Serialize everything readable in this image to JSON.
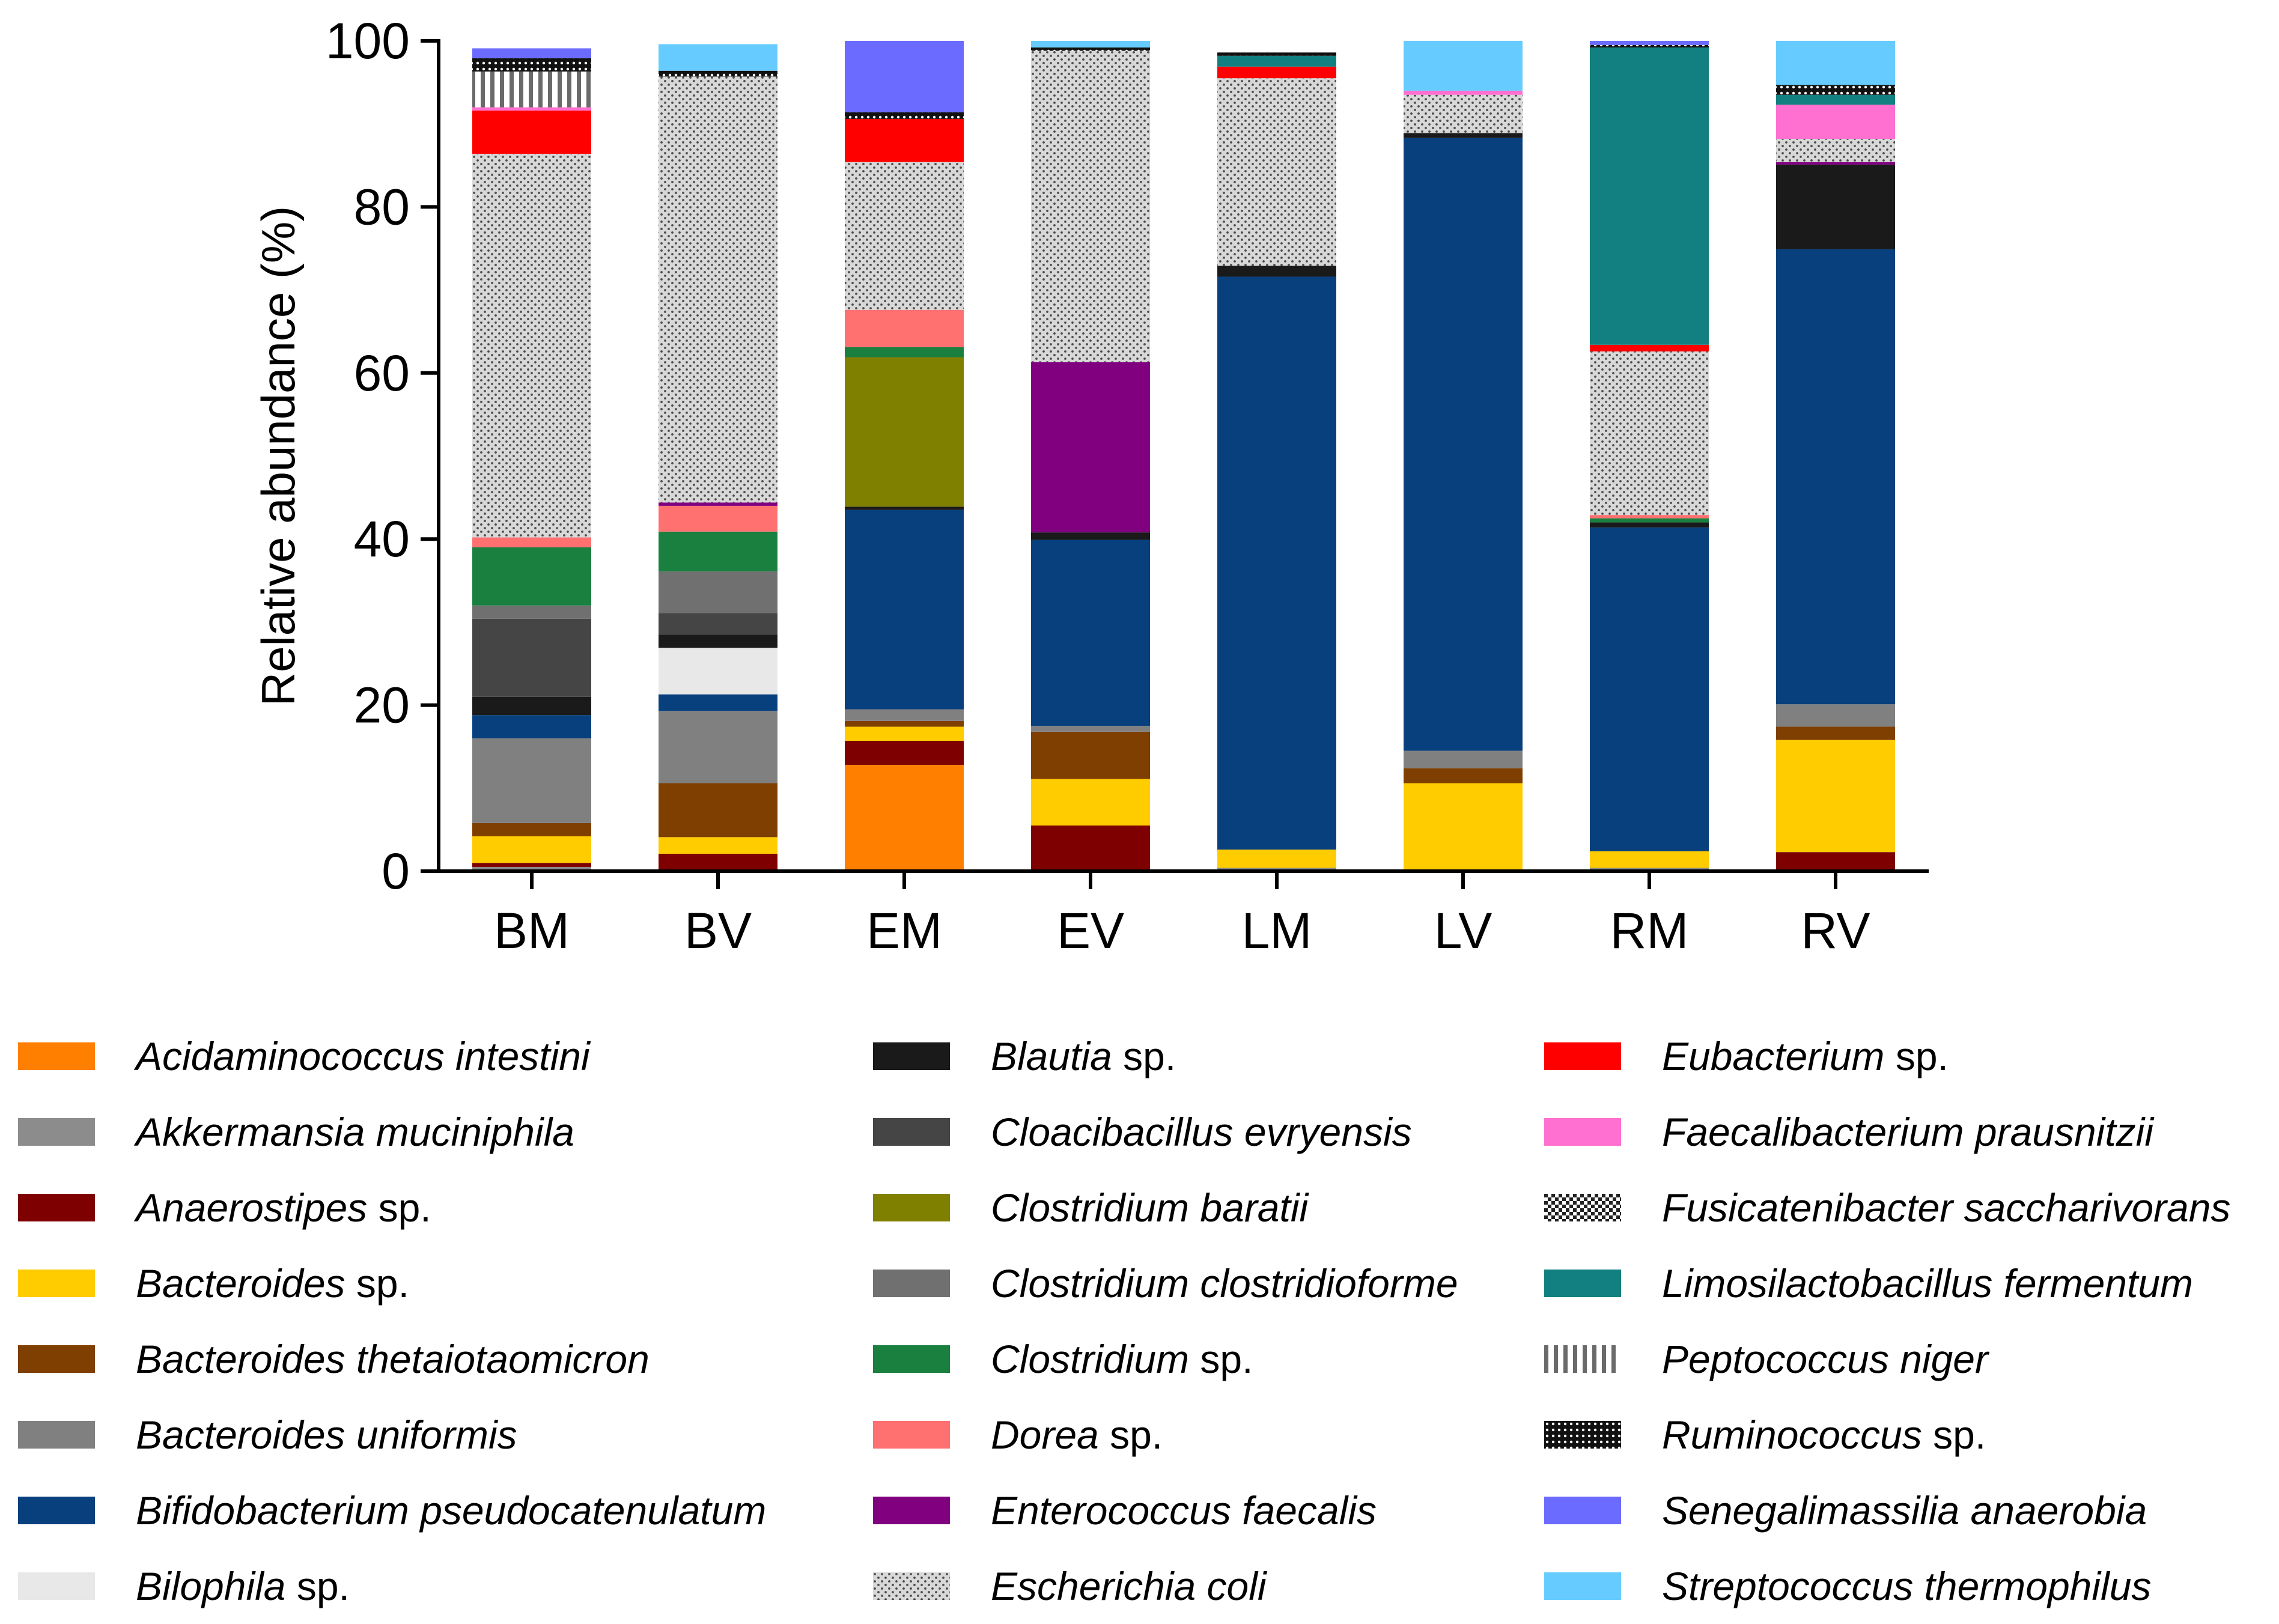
{
  "chart_data": {
    "type": "stacked-bar",
    "ylabel": "Relative abundance (%)",
    "xlabel": "",
    "ylim": [
      0,
      100
    ],
    "yticks": [
      "0",
      "20",
      "40",
      "60",
      "80",
      "100"
    ],
    "categories": [
      "BM",
      "BV",
      "EM",
      "EV",
      "LM",
      "LV",
      "RM",
      "RV"
    ],
    "series": [
      {
        "name": "Acidaminococcus intestini",
        "italic": "Acidaminococcus intestini",
        "suffix": "",
        "color": "#FF8000",
        "pattern": "solid",
        "values": [
          0,
          0,
          12.8,
          0,
          0,
          0,
          0,
          0
        ]
      },
      {
        "name": "Akkermansia muciniphila",
        "italic": "Akkermansia muciniphila",
        "suffix": "",
        "color": "#8C8C8C",
        "pattern": "solid",
        "values": [
          0.5,
          0,
          0,
          0,
          0.4,
          0,
          0.4,
          0
        ]
      },
      {
        "name": "Anaerostipes sp.",
        "italic": "Anaerostipes",
        "suffix": " sp.",
        "color": "#7F0000",
        "pattern": "solid",
        "values": [
          0.5,
          2.1,
          2.9,
          5.5,
          0,
          0,
          0,
          2.3
        ]
      },
      {
        "name": "Bacteroides sp.",
        "italic": "Bacteroides",
        "suffix": " sp.",
        "color": "#FFCC00",
        "pattern": "solid",
        "values": [
          3.2,
          2.0,
          1.7,
          5.6,
          2.2,
          10.6,
          2.0,
          13.5
        ]
      },
      {
        "name": "Bacteroides thetaiotaomicron",
        "italic": "Bacteroides thetaiotaomicron",
        "suffix": "",
        "color": "#7F3F00",
        "pattern": "solid",
        "values": [
          1.6,
          6.5,
          0.7,
          5.7,
          0,
          1.8,
          0,
          1.6
        ]
      },
      {
        "name": "Bacteroides uniformis",
        "italic": "Bacteroides uniformis",
        "suffix": "",
        "color": "#808080",
        "pattern": "solid",
        "values": [
          10.2,
          8.7,
          1.4,
          0.7,
          0,
          2.1,
          0,
          2.7
        ]
      },
      {
        "name": "Bifidobacterium pseudocatenulatum",
        "italic": "Bifidobacterium pseudocatenulatum",
        "suffix": "",
        "color": "#08407E",
        "pattern": "solid",
        "values": [
          2.8,
          2.0,
          24.0,
          22.4,
          69.0,
          73.8,
          39.0,
          54.8
        ]
      },
      {
        "name": "Bilophila sp.",
        "italic": "Bilophila",
        "suffix": " sp.",
        "color": "#E8E8E8",
        "pattern": "solid",
        "values": [
          0,
          5.6,
          0,
          0,
          0,
          0,
          0,
          0
        ]
      },
      {
        "name": "Blautia sp.",
        "italic": "Blautia",
        "suffix": " sp.",
        "color": "#1A1A1A",
        "pattern": "solid",
        "values": [
          2.2,
          1.6,
          0.4,
          0.9,
          1.3,
          0.6,
          0.6,
          10.2
        ]
      },
      {
        "name": "Cloacibacillus evryensis",
        "italic": "Cloacibacillus evryensis",
        "suffix": "",
        "color": "#454545",
        "pattern": "solid",
        "values": [
          9.4,
          2.6,
          0,
          0,
          0,
          0,
          0,
          0
        ]
      },
      {
        "name": "Clostridium baratii",
        "italic": "Clostridium baratii",
        "suffix": "",
        "color": "#808000",
        "pattern": "solid",
        "values": [
          0,
          0,
          18.0,
          0,
          0,
          0,
          0,
          0
        ]
      },
      {
        "name": "Clostridium clostridioforme",
        "italic": "Clostridium clostridioforme",
        "suffix": "",
        "color": "#707070",
        "pattern": "solid",
        "values": [
          1.6,
          5.0,
          0,
          0,
          0,
          0,
          0,
          0
        ]
      },
      {
        "name": "Clostridium sp.",
        "italic": "Clostridium",
        "suffix": " sp.",
        "color": "#1A8040",
        "pattern": "solid",
        "values": [
          7.0,
          4.8,
          1.2,
          0,
          0,
          0,
          0.5,
          0
        ]
      },
      {
        "name": "Dorea sp.",
        "italic": "Dorea",
        "suffix": " sp.",
        "color": "#FF7070",
        "pattern": "solid",
        "values": [
          1.2,
          3.1,
          4.5,
          0,
          0,
          0,
          0.4,
          0
        ]
      },
      {
        "name": "Enterococcus faecalis",
        "italic": "Enterococcus faecalis",
        "suffix": "",
        "color": "#800080",
        "pattern": "solid",
        "values": [
          0,
          0.4,
          0,
          20.5,
          0,
          0,
          0,
          0.3
        ]
      },
      {
        "name": "Escherichia coli",
        "italic": "Escherichia coli",
        "suffix": "",
        "color": "#D4D4D4",
        "pattern": "dots",
        "values": [
          46.2,
          51.3,
          17.8,
          37.5,
          22.6,
          4.6,
          19.7,
          2.8
        ]
      },
      {
        "name": "Eubacterium sp.",
        "italic": "Eubacterium",
        "suffix": " sp.",
        "color": "#FF0000",
        "pattern": "solid",
        "values": [
          5.2,
          0,
          5.2,
          0,
          1.4,
          0,
          0.8,
          0
        ]
      },
      {
        "name": "Faecalibacterium prausnitzii",
        "italic": "Faecalibacterium prausnitzii",
        "suffix": "",
        "color": "#FF70D0",
        "pattern": "solid",
        "values": [
          0.4,
          0,
          0,
          0,
          0,
          0.5,
          0,
          4.1
        ]
      },
      {
        "name": "Fusicatenibacter saccharivorans",
        "italic": "Fusicatenibacter saccharivorans",
        "suffix": "",
        "color": "#303030",
        "pattern": "checker",
        "values": [
          0,
          0,
          0,
          0,
          0,
          0,
          0,
          0
        ]
      },
      {
        "name": "Limosilactobacillus fermentum",
        "italic": "Limosilactobacillus fermentum",
        "suffix": "",
        "color": "#128080",
        "pattern": "solid",
        "values": [
          0,
          0,
          0,
          0,
          1.3,
          0,
          35.8,
          1.2
        ]
      },
      {
        "name": "Peptococcus niger",
        "italic": "Peptococcus niger",
        "suffix": "",
        "color": "#909090",
        "pattern": "vlines",
        "values": [
          4.3,
          0,
          0,
          0,
          0,
          0,
          0,
          0
        ]
      },
      {
        "name": "Ruminococcus sp.",
        "italic": "Ruminococcus",
        "suffix": " sp.",
        "color": "#101010",
        "pattern": "dense",
        "values": [
          1.6,
          0.7,
          0.8,
          0.4,
          0.4,
          0,
          0.3,
          1.2
        ]
      },
      {
        "name": "Senegalimassilia anaerobia",
        "italic": "Senegalimassilia anaerobia",
        "suffix": "",
        "color": "#6B6BFF",
        "pattern": "solid",
        "values": [
          1.2,
          0,
          8.6,
          0,
          0,
          0,
          0.5,
          0
        ]
      },
      {
        "name": "Streptococcus thermophilus",
        "italic": "Streptococcus thermophilus",
        "suffix": "",
        "color": "#66CCFF",
        "pattern": "solid",
        "values": [
          0,
          3.2,
          0,
          0.8,
          0,
          6.0,
          0,
          5.3
        ]
      }
    ],
    "legend_position": "bottom"
  }
}
